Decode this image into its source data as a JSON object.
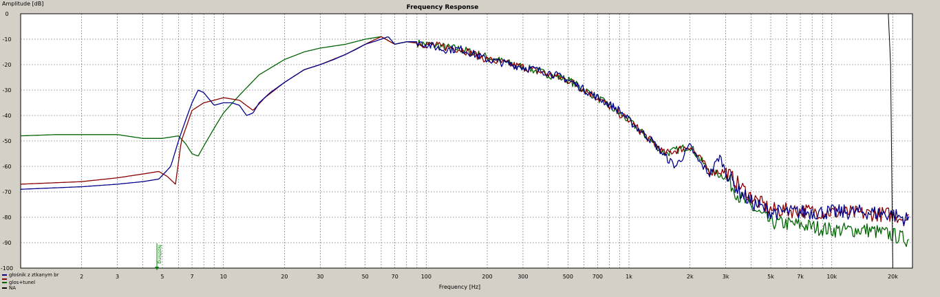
{
  "chart_data": {
    "type": "line",
    "title": "Frequency Response",
    "xlabel": "Frequency [Hz]",
    "ylabel": "Amplitude [dB]",
    "x_scale": "log",
    "xlim": [
      1,
      25000
    ],
    "ylim": [
      -100,
      0
    ],
    "grid": true,
    "legend_position": "bottom-left",
    "y_ticks": [
      "0",
      "-10",
      "-20",
      "-30",
      "-40",
      "-50",
      "-60",
      "-70",
      "-80",
      "-90",
      "-100"
    ],
    "x_ticks": [
      {
        "value": 2,
        "label": "2"
      },
      {
        "value": 3,
        "label": "3"
      },
      {
        "value": 5,
        "label": "5"
      },
      {
        "value": 7,
        "label": "7"
      },
      {
        "value": 10,
        "label": "10"
      },
      {
        "value": 20,
        "label": "20"
      },
      {
        "value": 30,
        "label": "30"
      },
      {
        "value": 50,
        "label": "50"
      },
      {
        "value": 70,
        "label": "70"
      },
      {
        "value": 100,
        "label": "100"
      },
      {
        "value": 200,
        "label": "200"
      },
      {
        "value": 300,
        "label": "300"
      },
      {
        "value": 500,
        "label": "500"
      },
      {
        "value": 700,
        "label": "700"
      },
      {
        "value": 1000,
        "label": "1k"
      },
      {
        "value": 2000,
        "label": "2k"
      },
      {
        "value": 3000,
        "label": "3k"
      },
      {
        "value": 5000,
        "label": "5k"
      },
      {
        "value": 7000,
        "label": "7k"
      },
      {
        "value": 10000,
        "label": "10k"
      },
      {
        "value": 20000,
        "label": "20k"
      }
    ],
    "marker": {
      "label": "Nothing",
      "x": 4.7,
      "color": "#008000"
    },
    "series": [
      {
        "name": "głośnik z ztkanym br",
        "color": "#00008b",
        "points": [
          [
            1,
            -69
          ],
          [
            2,
            -68
          ],
          [
            3,
            -67
          ],
          [
            4,
            -66
          ],
          [
            4.8,
            -65
          ],
          [
            5.5,
            -60
          ],
          [
            6,
            -50
          ],
          [
            6.5,
            -42
          ],
          [
            7,
            -35
          ],
          [
            7.5,
            -30
          ],
          [
            8,
            -31
          ],
          [
            9,
            -36
          ],
          [
            10,
            -35
          ],
          [
            11,
            -35
          ],
          [
            12,
            -36
          ],
          [
            13,
            -40
          ],
          [
            14,
            -39
          ],
          [
            15,
            -35
          ],
          [
            17,
            -31
          ],
          [
            20,
            -27
          ],
          [
            25,
            -22
          ],
          [
            30,
            -20
          ],
          [
            35,
            -18
          ],
          [
            40,
            -16
          ],
          [
            45,
            -14
          ],
          [
            50,
            -12
          ],
          [
            55,
            -11
          ],
          [
            60,
            -10
          ],
          [
            65,
            -9
          ],
          [
            70,
            -12
          ],
          [
            80,
            -11
          ],
          [
            90,
            -11
          ],
          [
            100,
            -12
          ],
          [
            120,
            -14
          ],
          [
            150,
            -14
          ],
          [
            200,
            -18
          ],
          [
            300,
            -21
          ],
          [
            400,
            -23
          ],
          [
            500,
            -26
          ],
          [
            700,
            -33
          ],
          [
            900,
            -38
          ],
          [
            1000,
            -42
          ],
          [
            1300,
            -50
          ],
          [
            1500,
            -56
          ],
          [
            1700,
            -60
          ],
          [
            2000,
            -52
          ],
          [
            2200,
            -58
          ],
          [
            2500,
            -63
          ],
          [
            2800,
            -56
          ],
          [
            3000,
            -62
          ],
          [
            3500,
            -70
          ],
          [
            4000,
            -74
          ],
          [
            5000,
            -78
          ],
          [
            7000,
            -78
          ],
          [
            10000,
            -78
          ],
          [
            15000,
            -78
          ],
          [
            20000,
            -79
          ],
          [
            24000,
            -81
          ]
        ]
      },
      {
        "name": "",
        "color": "#8b0000",
        "points": [
          [
            1,
            -67
          ],
          [
            2,
            -66
          ],
          [
            3,
            -64.5
          ],
          [
            4,
            -63
          ],
          [
            4.8,
            -62
          ],
          [
            5.3,
            -64
          ],
          [
            5.8,
            -67
          ],
          [
            6.2,
            -50
          ],
          [
            7,
            -38
          ],
          [
            8,
            -35
          ],
          [
            9,
            -34
          ],
          [
            10,
            -33
          ],
          [
            12,
            -34
          ],
          [
            14,
            -38
          ],
          [
            16,
            -33
          ],
          [
            20,
            -27
          ],
          [
            25,
            -22
          ],
          [
            30,
            -20
          ],
          [
            40,
            -16
          ],
          [
            50,
            -12
          ],
          [
            60,
            -9
          ],
          [
            70,
            -12
          ],
          [
            80,
            -11
          ],
          [
            100,
            -12
          ],
          [
            150,
            -14
          ],
          [
            200,
            -18
          ],
          [
            300,
            -21
          ],
          [
            500,
            -26
          ],
          [
            700,
            -33
          ],
          [
            1000,
            -42
          ],
          [
            1500,
            -55
          ],
          [
            2000,
            -52
          ],
          [
            2500,
            -62
          ],
          [
            3000,
            -62
          ],
          [
            4000,
            -72
          ],
          [
            5000,
            -77
          ],
          [
            10000,
            -78
          ],
          [
            20000,
            -79
          ],
          [
            24000,
            -81
          ]
        ]
      },
      {
        "name": "glos+tunel",
        "color": "#006400",
        "points": [
          [
            1,
            -48
          ],
          [
            1.5,
            -47.5
          ],
          [
            2,
            -47.5
          ],
          [
            3,
            -47.5
          ],
          [
            4,
            -49
          ],
          [
            5,
            -49
          ],
          [
            6,
            -48
          ],
          [
            6.5,
            -51
          ],
          [
            7,
            -55
          ],
          [
            7.5,
            -56
          ],
          [
            8,
            -52
          ],
          [
            9,
            -45
          ],
          [
            10,
            -39
          ],
          [
            12,
            -32
          ],
          [
            15,
            -24
          ],
          [
            20,
            -18
          ],
          [
            25,
            -15
          ],
          [
            30,
            -13.5
          ],
          [
            40,
            -12
          ],
          [
            50,
            -10
          ],
          [
            60,
            -9
          ],
          [
            70,
            -12
          ],
          [
            80,
            -11
          ],
          [
            100,
            -12
          ],
          [
            150,
            -14
          ],
          [
            200,
            -17
          ],
          [
            300,
            -21
          ],
          [
            500,
            -26
          ],
          [
            700,
            -33
          ],
          [
            1000,
            -42
          ],
          [
            1500,
            -55
          ],
          [
            2000,
            -52
          ],
          [
            2500,
            -62
          ],
          [
            3000,
            -64
          ],
          [
            3500,
            -72
          ],
          [
            4000,
            -76
          ],
          [
            5000,
            -82
          ],
          [
            7000,
            -83
          ],
          [
            10000,
            -85
          ],
          [
            15000,
            -85
          ],
          [
            20000,
            -87
          ],
          [
            24000,
            -89
          ]
        ]
      },
      {
        "name": "NA",
        "color": "#000000",
        "points": [
          [
            1,
            0
          ],
          [
            19000,
            0
          ],
          [
            19500,
            -20
          ],
          [
            20000,
            -100
          ]
        ]
      }
    ]
  }
}
